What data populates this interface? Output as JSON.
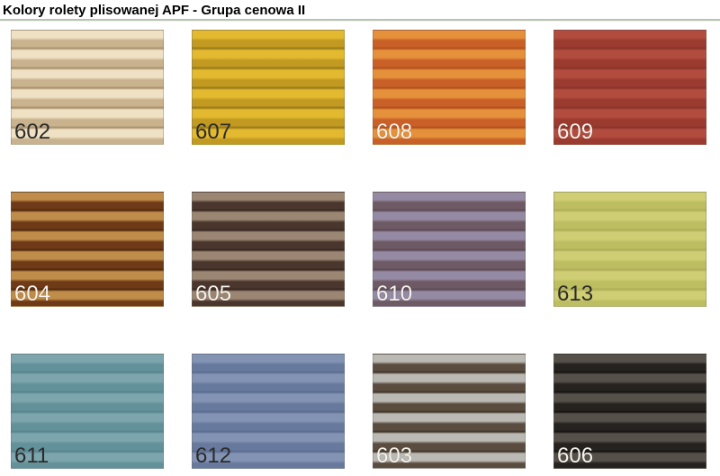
{
  "page": {
    "title": "Kolory rolety plisowanej APF - Grupa cenowa II"
  },
  "styles": {
    "divider_color": "#b9c3b4",
    "label_dark_color": "#2b2b2b",
    "label_light_color": "#f6f3ed"
  },
  "swatches": [
    {
      "code": "602",
      "stripe_light": "#eee1c4",
      "stripe_dark": "#c9b28e",
      "stripe_line": "#ab9470",
      "label_style": "dark"
    },
    {
      "code": "607",
      "stripe_light": "#e2b92f",
      "stripe_dark": "#c29a22",
      "stripe_line": "#9c7d1a",
      "label_style": "dark"
    },
    {
      "code": "608",
      "stripe_light": "#e5913b",
      "stripe_dark": "#c96028",
      "stripe_line": "#b5521f",
      "label_style": "light"
    },
    {
      "code": "609",
      "stripe_light": "#b14c3e",
      "stripe_dark": "#9b3a2f",
      "stripe_line": "#8c352b",
      "label_style": "light"
    },
    {
      "code": "604",
      "stripe_light": "#bf8c49",
      "stripe_dark": "#6e3a17",
      "stripe_line": "#552b10",
      "label_style": "light"
    },
    {
      "code": "605",
      "stripe_light": "#9b8673",
      "stripe_dark": "#4a362d",
      "stripe_line": "#3a2a23",
      "label_style": "light"
    },
    {
      "code": "610",
      "stripe_light": "#948aa3",
      "stripe_dark": "#6e5a64",
      "stripe_line": "#5f4c57",
      "label_style": "light"
    },
    {
      "code": "613",
      "stripe_light": "#d0ce74",
      "stripe_dark": "#bdbd62",
      "stripe_line": "#b0b058",
      "label_style": "dark"
    },
    {
      "code": "611",
      "stripe_light": "#7da5ad",
      "stripe_dark": "#639199",
      "stripe_line": "#578790",
      "label_style": "dark"
    },
    {
      "code": "612",
      "stripe_light": "#8393b3",
      "stripe_dark": "#68799e",
      "stripe_line": "#5d6e93",
      "label_style": "dark"
    },
    {
      "code": "603",
      "stripe_light": "#bbb9b3",
      "stripe_dark": "#5a4c3f",
      "stripe_line": "#463a2f",
      "label_style": "light"
    },
    {
      "code": "606",
      "stripe_light": "#555049",
      "stripe_dark": "#252220",
      "stripe_line": "#191715",
      "label_style": "light"
    }
  ]
}
